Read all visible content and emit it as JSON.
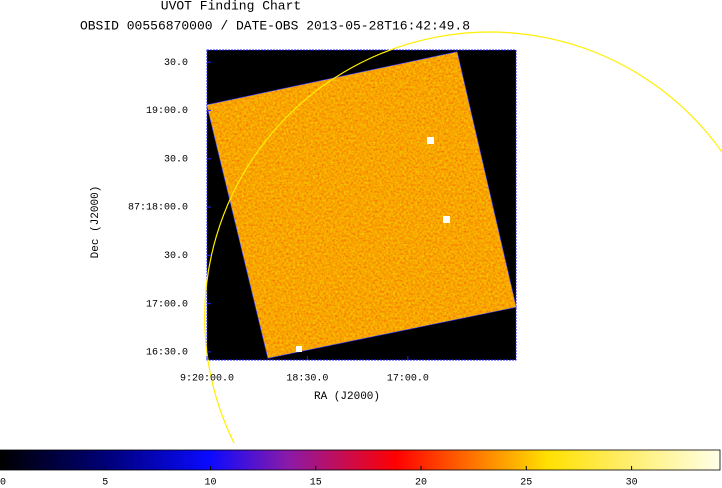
{
  "chart_data": {
    "type": "image",
    "title": "UVOT Finding Chart",
    "subtitle": "OBSID 00556870000 / DATE-OBS 2013-05-28T16:42:49.8",
    "xlabel": "RA (J2000)",
    "ylabel": "Dec (J2000)",
    "xlim": [
      140.0,
      138.846
    ],
    "xticks": [
      {
        "value": 140.0,
        "label": "9:20:00.0"
      },
      {
        "value": 139.625,
        "label": "18:30.0"
      },
      {
        "value": 139.25,
        "label": "17:00.0"
      }
    ],
    "ylim": [
      87.2736,
      87.3271
    ],
    "yticks": [
      {
        "value": 87.325,
        "label": "30.0"
      },
      {
        "value": 87.31667,
        "label": "19:00.0"
      },
      {
        "value": 87.30833,
        "label": "30.0"
      },
      {
        "value": 87.3,
        "label": "87:18:00.0"
      },
      {
        "value": 87.29167,
        "label": "30.0"
      },
      {
        "value": 87.28333,
        "label": "17:00.0"
      },
      {
        "value": 87.275,
        "label": "16:30.0"
      }
    ],
    "clim": [
      0,
      34.2
    ],
    "cticks": [
      0,
      5,
      10,
      15,
      20,
      25,
      30
    ]
  }
}
